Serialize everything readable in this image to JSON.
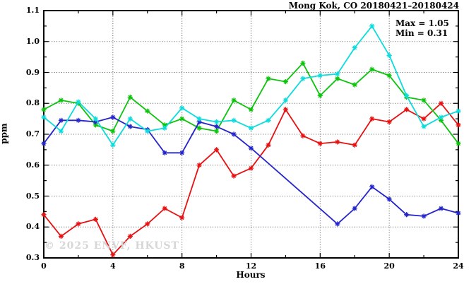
{
  "watermark": "© 2025 ENVF, HKUST",
  "chart_data": {
    "type": "line",
    "title": "Mong Kok, CO 20180421–20180424",
    "xlabel": "Hours",
    "ylabel": "ppm",
    "xlim": [
      0,
      24
    ],
    "ylim": [
      0.3,
      1.1
    ],
    "grid": true,
    "legend": false,
    "annotations": {
      "max": "Max = 1.05",
      "min": "Min = 0.31"
    },
    "stats": {
      "max": 1.05,
      "min": 0.31
    },
    "xticks": [
      0,
      4,
      8,
      12,
      16,
      20,
      24
    ],
    "xtick_labels": [
      "0",
      "4",
      "8",
      "12",
      "16",
      "20",
      "24"
    ],
    "xticks_minor": [
      2,
      6,
      10,
      14,
      18,
      22
    ],
    "yticks": [
      0.3,
      0.4,
      0.5,
      0.6,
      0.7,
      0.8,
      0.9,
      1.0,
      1.1
    ],
    "ytick_labels": [
      "0.3",
      "0.4",
      "0.5",
      "0.6",
      "0.7",
      "0.8",
      "0.9",
      "1.0",
      "1.1"
    ],
    "yticks_minor": [
      0.35,
      0.45,
      0.55,
      0.65,
      0.75,
      0.85,
      0.95,
      1.05
    ],
    "x": [
      0,
      1,
      2,
      3,
      4,
      5,
      6,
      7,
      8,
      9,
      10,
      11,
      12,
      13,
      14,
      15,
      16,
      17,
      18,
      19,
      20,
      21,
      22,
      23,
      24
    ],
    "series": [
      {
        "name": "red-line",
        "color": "#e81111",
        "values": [
          0.44,
          0.37,
          0.41,
          0.425,
          0.31,
          0.37,
          0.41,
          0.46,
          0.43,
          0.6,
          0.65,
          0.565,
          0.59,
          0.665,
          0.78,
          0.695,
          0.67,
          0.675,
          0.665,
          0.75,
          0.74,
          0.78,
          0.75,
          0.8,
          0.73
        ]
      },
      {
        "name": "green-line",
        "color": "#0cc40c",
        "values": [
          0.78,
          0.81,
          0.8,
          0.73,
          0.71,
          0.82,
          0.775,
          0.73,
          0.75,
          0.72,
          0.71,
          0.81,
          0.78,
          0.88,
          0.87,
          0.93,
          0.825,
          0.88,
          0.86,
          0.91,
          0.89,
          0.82,
          0.81,
          0.745,
          0.67
        ]
      },
      {
        "name": "blue-line",
        "color": "#2525cc",
        "values": [
          0.67,
          0.745,
          0.745,
          0.74,
          0.755,
          0.725,
          0.715,
          0.64,
          0.64,
          0.74,
          0.725,
          0.7,
          0.655,
          null,
          null,
          null,
          null,
          0.41,
          0.46,
          0.53,
          0.49,
          0.44,
          0.435,
          0.46,
          0.445
        ]
      },
      {
        "name": "cyan-line",
        "color": "#0ddcdc",
        "values": [
          0.755,
          0.71,
          0.805,
          0.75,
          0.665,
          0.75,
          0.71,
          0.72,
          0.785,
          0.75,
          0.74,
          0.745,
          0.72,
          0.745,
          0.81,
          0.88,
          0.89,
          0.895,
          0.98,
          1.05,
          0.955,
          0.825,
          0.725,
          0.755,
          0.775
        ]
      }
    ]
  }
}
